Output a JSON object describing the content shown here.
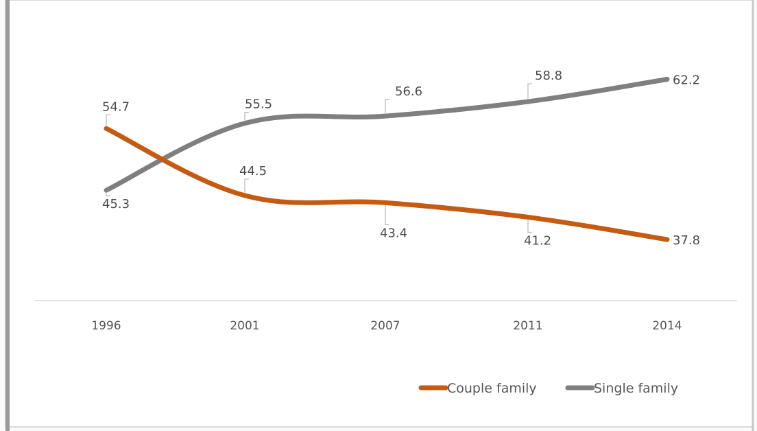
{
  "chart_data": {
    "type": "line",
    "categories": [
      "1996",
      "2001",
      "2007",
      "2011",
      "2014"
    ],
    "series": [
      {
        "name": "Couple family",
        "values": [
          54.7,
          44.5,
          43.4,
          41.2,
          37.8
        ],
        "color": "#c55a11"
      },
      {
        "name": "Single family",
        "values": [
          45.3,
          55.5,
          56.6,
          58.8,
          62.2
        ],
        "color": "#7f7f7f"
      }
    ],
    "ylim": [
      28.5,
      68
    ],
    "grid": false,
    "smooth": true,
    "data_labels": true,
    "legend_position": "bottom-right"
  }
}
